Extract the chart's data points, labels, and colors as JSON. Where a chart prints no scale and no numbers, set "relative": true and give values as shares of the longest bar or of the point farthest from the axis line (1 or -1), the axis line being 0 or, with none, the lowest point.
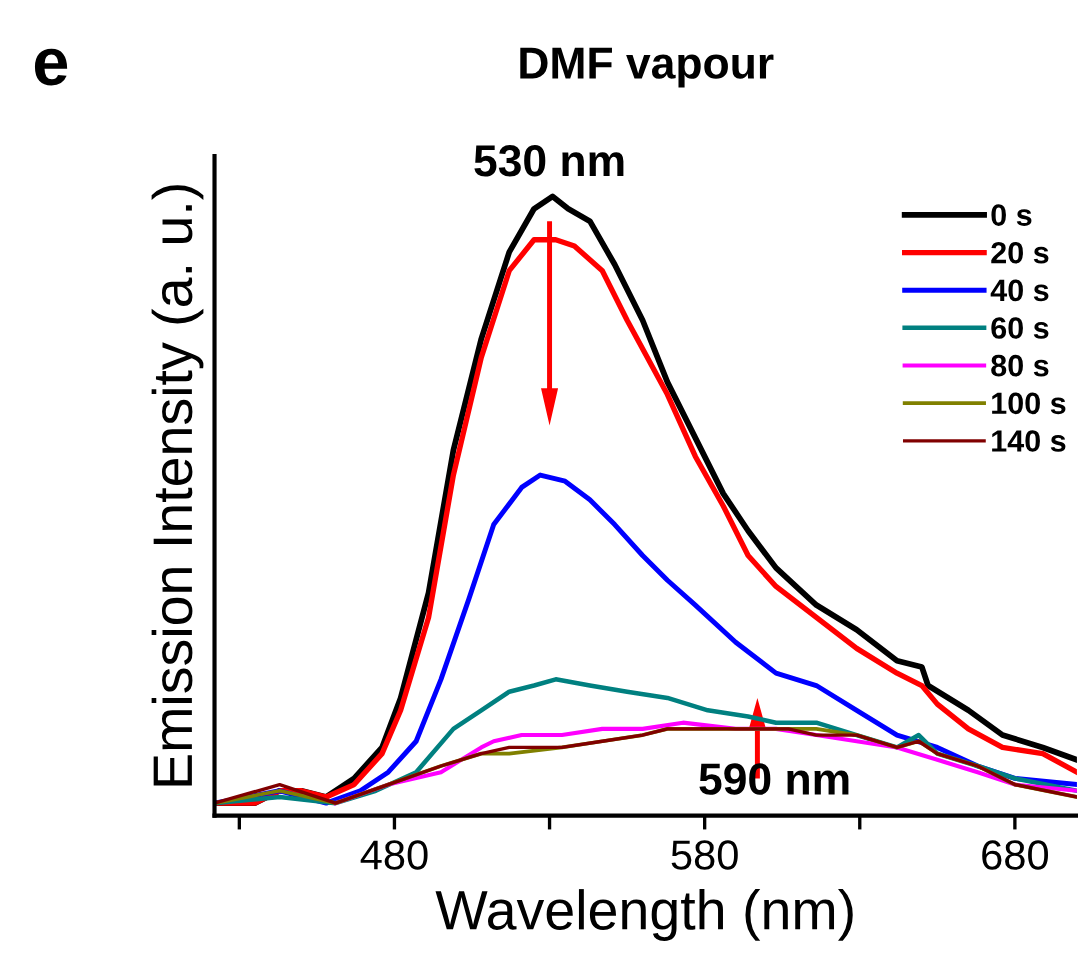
{
  "chart_data": {
    "type": "line",
    "title": "DMF vapour",
    "xlabel": "Wavelength (nm)",
    "ylabel": "Emission Intensity (a. u.)",
    "relative": true,
    "xlim": [
      422,
      700
    ],
    "xticks": [
      {
        "value": 430,
        "label": null
      },
      480,
      {
        "value": 530,
        "label": null
      },
      580,
      {
        "value": 630,
        "label": null
      },
      680
    ],
    "legend": "top right",
    "grid": false,
    "marker": "none",
    "line_style": "solid",
    "annotations": [
      "e",
      {
        "text": "530 nm",
        "x": 530,
        "y": 1.0
      },
      {
        "text": "590 nm",
        "x": 590,
        "y": 0.14
      }
    ],
    "series": [
      {
        "name": "0 s",
        "color": "#000000",
        "x": [
          422,
          435,
          443,
          450,
          458,
          467,
          476,
          482,
          491,
          499,
          508,
          517,
          525,
          531,
          536,
          543,
          551,
          560,
          568,
          577,
          586,
          594,
          603,
          616,
          629,
          642,
          650,
          652,
          665,
          676,
          689,
          700
        ],
        "values": [
          0.02,
          0.02,
          0.04,
          0.04,
          0.03,
          0.06,
          0.11,
          0.19,
          0.36,
          0.59,
          0.77,
          0.91,
          0.98,
          1.0,
          0.98,
          0.96,
          0.89,
          0.8,
          0.7,
          0.61,
          0.52,
          0.46,
          0.4,
          0.34,
          0.3,
          0.25,
          0.24,
          0.21,
          0.17,
          0.13,
          0.11,
          0.09
        ]
      },
      {
        "name": "20 s",
        "color": "#ff0000",
        "x": [
          422,
          435,
          443,
          450,
          458,
          467,
          476,
          482,
          491,
          499,
          508,
          517,
          525,
          532,
          538,
          547,
          555,
          568,
          577,
          586,
          594,
          603,
          616,
          629,
          642,
          650,
          655,
          665,
          676,
          689,
          700
        ],
        "values": [
          0.02,
          0.02,
          0.04,
          0.04,
          0.03,
          0.05,
          0.1,
          0.17,
          0.32,
          0.55,
          0.74,
          0.88,
          0.93,
          0.93,
          0.92,
          0.88,
          0.8,
          0.68,
          0.58,
          0.5,
          0.42,
          0.37,
          0.32,
          0.27,
          0.23,
          0.21,
          0.18,
          0.14,
          0.11,
          0.1,
          0.07
        ]
      },
      {
        "name": "40 s",
        "color": "#0000ff",
        "x": [
          422,
          443,
          458,
          469,
          478,
          487,
          495,
          504,
          512,
          521,
          527,
          535,
          543,
          551,
          560,
          568,
          577,
          590,
          603,
          616,
          629,
          642,
          655,
          668,
          680,
          700
        ],
        "values": [
          0.02,
          0.04,
          0.02,
          0.04,
          0.07,
          0.12,
          0.22,
          0.35,
          0.47,
          0.53,
          0.55,
          0.54,
          0.51,
          0.47,
          0.42,
          0.38,
          0.34,
          0.28,
          0.23,
          0.21,
          0.17,
          0.13,
          0.11,
          0.08,
          0.06,
          0.05
        ]
      },
      {
        "name": "60 s",
        "color": "#008080",
        "x": [
          422,
          443,
          461,
          474,
          487,
          499,
          508,
          517,
          525,
          532,
          543,
          555,
          568,
          581,
          594,
          603,
          616,
          629,
          642,
          649,
          655,
          668,
          680,
          700
        ],
        "values": [
          0.02,
          0.03,
          0.02,
          0.04,
          0.07,
          0.14,
          0.17,
          0.2,
          0.21,
          0.22,
          0.21,
          0.2,
          0.19,
          0.17,
          0.16,
          0.15,
          0.15,
          0.13,
          0.11,
          0.13,
          0.1,
          0.08,
          0.06,
          0.04
        ]
      },
      {
        "name": "80 s",
        "color": "#ff00ff",
        "x": [
          461,
          478,
          495,
          508,
          512,
          521,
          534,
          547,
          560,
          573,
          590,
          603,
          616,
          629,
          642,
          655,
          668,
          680,
          700
        ],
        "values": [
          0.02,
          0.05,
          0.07,
          0.11,
          0.12,
          0.13,
          0.13,
          0.14,
          0.14,
          0.15,
          0.14,
          0.14,
          0.13,
          0.12,
          0.11,
          0.09,
          0.07,
          0.05,
          0.04
        ]
      },
      {
        "name": "100 s",
        "color": "#808000",
        "x": [
          422,
          443,
          461,
          478,
          495,
          508,
          517,
          534,
          547,
          560,
          568,
          581,
          594,
          607,
          616,
          629,
          642,
          649,
          655,
          668,
          680,
          700
        ],
        "values": [
          0.02,
          0.04,
          0.02,
          0.05,
          0.08,
          0.1,
          0.1,
          0.11,
          0.12,
          0.13,
          0.14,
          0.14,
          0.14,
          0.14,
          0.14,
          0.13,
          0.11,
          0.12,
          0.1,
          0.08,
          0.05,
          0.03
        ]
      },
      {
        "name": "140 s",
        "color": "#800000",
        "x": [
          422,
          443,
          461,
          478,
          495,
          508,
          517,
          534,
          547,
          560,
          568,
          581,
          594,
          607,
          616,
          629,
          642,
          649,
          655,
          668,
          680,
          700
        ],
        "values": [
          0.02,
          0.05,
          0.02,
          0.05,
          0.08,
          0.1,
          0.11,
          0.11,
          0.12,
          0.13,
          0.14,
          0.14,
          0.14,
          0.14,
          0.13,
          0.13,
          0.11,
          0.12,
          0.1,
          0.08,
          0.05,
          0.03
        ]
      }
    ]
  }
}
